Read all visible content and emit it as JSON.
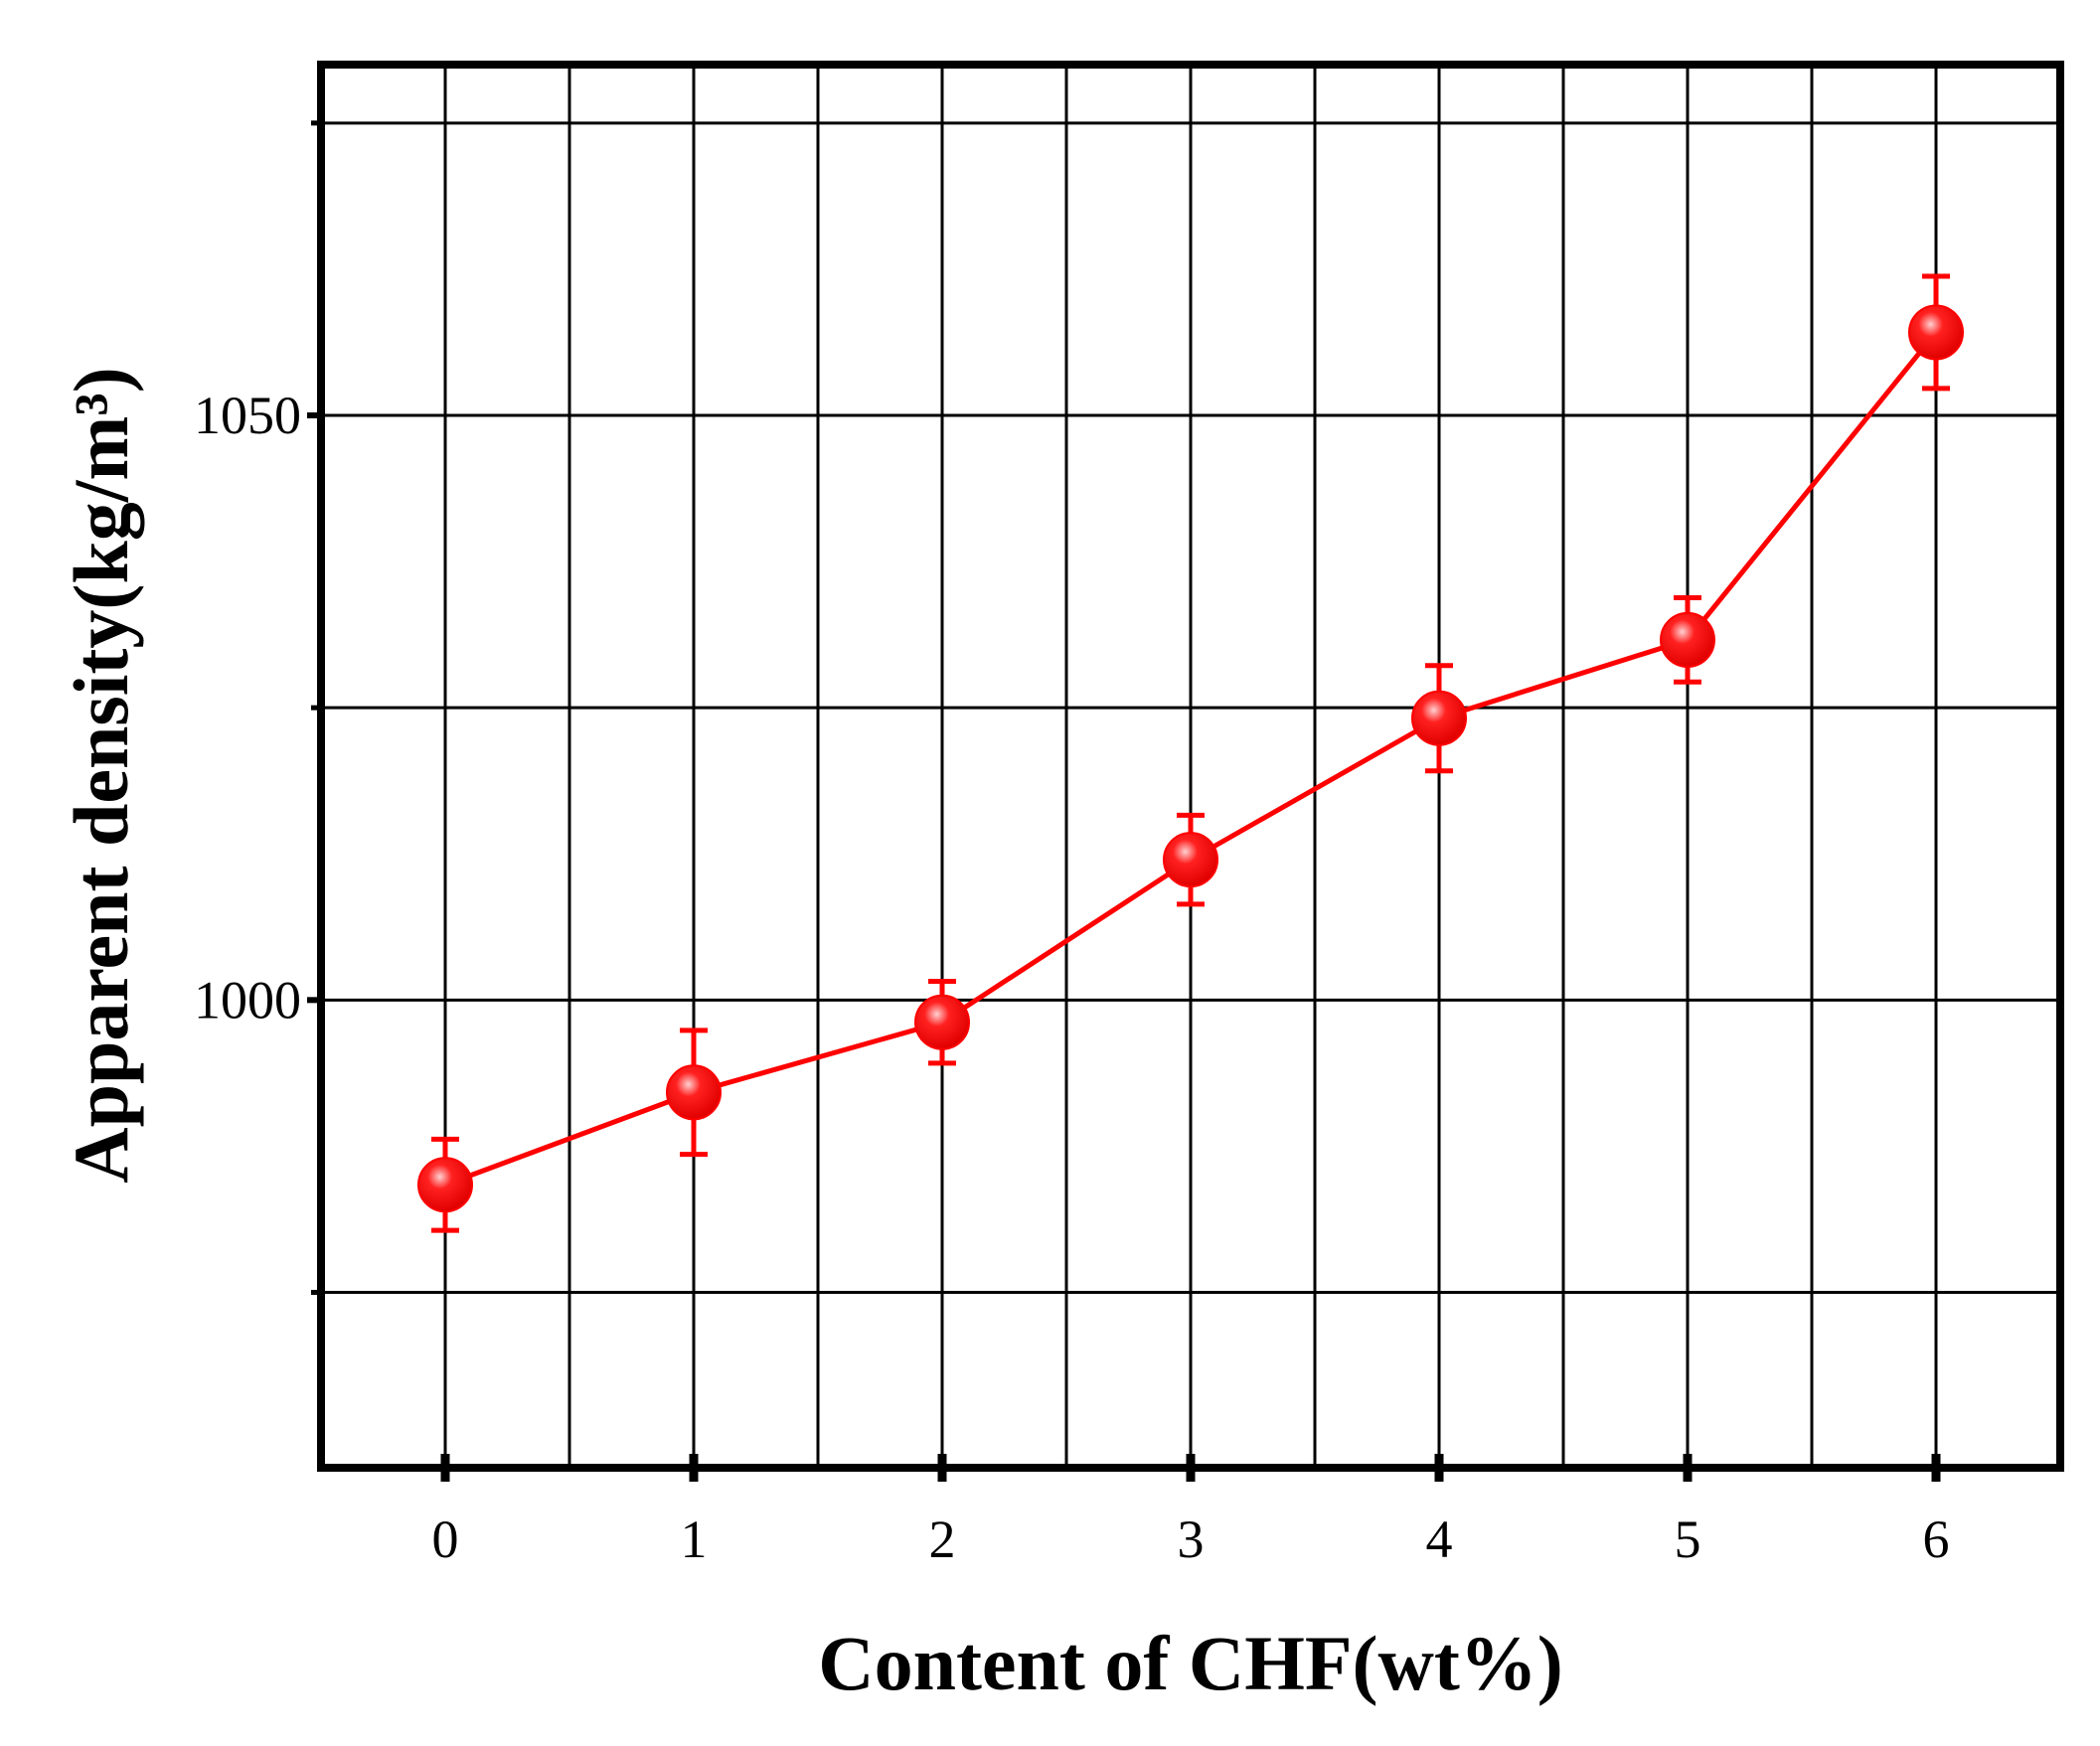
{
  "chart_data": {
    "type": "line",
    "x_label": "Content of CHF(wt%)",
    "y_label": "Apparent density(kg/m³)",
    "x": [
      0,
      1,
      2,
      3,
      4,
      5,
      6
    ],
    "series": [
      {
        "color": "#ff0000",
        "values": [
          984.2,
          992.1,
          998.1,
          1012.0,
          1024.1,
          1030.8,
          1057.1
        ],
        "errors": [
          3.9,
          5.3,
          3.5,
          3.8,
          4.5,
          3.6,
          4.8
        ]
      }
    ],
    "xlim": [
      -0.5,
      6.5
    ],
    "xticks": [
      0,
      1,
      2,
      3,
      4,
      5,
      6
    ],
    "xminorticks": [
      0.5,
      1.5,
      2.5,
      3.5,
      4.5,
      5.5
    ],
    "ylim": [
      960,
      1080
    ],
    "yticks": [
      1000,
      1050
    ],
    "yminorticks": [
      975,
      1025,
      1075
    ],
    "grid": true
  }
}
